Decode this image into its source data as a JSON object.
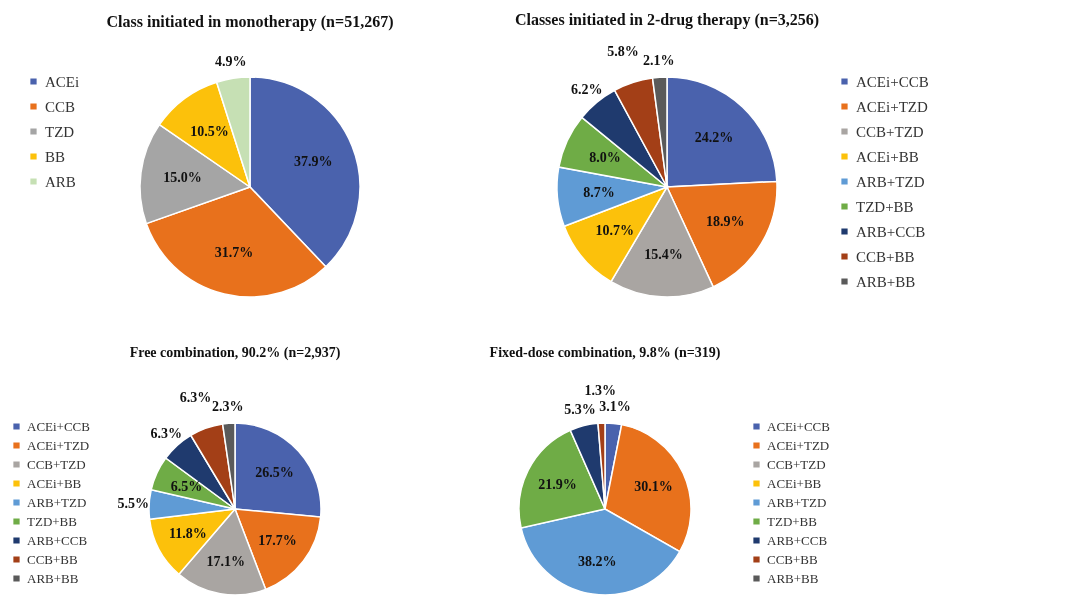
{
  "chart_data": [
    {
      "type": "pie",
      "title": "Class initiated in monotherapy (n=51,267)",
      "legend": "left",
      "categories": [
        "ACEi",
        "CCB",
        "TZD",
        "BB",
        "ARB"
      ],
      "values": [
        37.9,
        31.7,
        15.0,
        10.5,
        4.9
      ],
      "colors": [
        "#4a62ad",
        "#e8711c",
        "#a5a5a5",
        "#fcc10b",
        "#c6e0b4"
      ],
      "value_labels": [
        "37.9%",
        "31.7%",
        "15.0%",
        "10.5%",
        "4.9%"
      ]
    },
    {
      "type": "pie",
      "title": "Classes initiated in 2-drug therapy (n=3,256)",
      "legend": "right",
      "categories": [
        "ACEi+CCB",
        "ACEi+TZD",
        "CCB+TZD",
        "ACEi+BB",
        "ARB+TZD",
        "TZD+BB",
        "ARB+CCB",
        "CCB+BB",
        "ARB+BB"
      ],
      "values": [
        24.2,
        18.9,
        15.4,
        10.7,
        8.7,
        8.0,
        6.2,
        5.8,
        2.1
      ],
      "colors": [
        "#4a62ad",
        "#e8711c",
        "#a9a5a2",
        "#fcc10b",
        "#5f9bd5",
        "#6fac46",
        "#1f3a6e",
        "#a33f17",
        "#5a5a5a"
      ],
      "value_labels": [
        "24.2%",
        "18.9%",
        "15.4%",
        "10.7%",
        "8.7%",
        "8.0%",
        "6.2%",
        "5.8%",
        "2.1%"
      ]
    },
    {
      "type": "pie",
      "title": "Free combination, 90.2% (n=2,937)",
      "legend": "left",
      "categories": [
        "ACEi+CCB",
        "ACEi+TZD",
        "CCB+TZD",
        "ACEi+BB",
        "ARB+TZD",
        "TZD+BB",
        "ARB+CCB",
        "CCB+BB",
        "ARB+BB"
      ],
      "values": [
        26.5,
        17.7,
        17.1,
        11.8,
        5.5,
        6.5,
        6.3,
        6.3,
        2.3
      ],
      "colors": [
        "#4a62ad",
        "#e8711c",
        "#a9a5a2",
        "#fcc10b",
        "#5f9bd5",
        "#6fac46",
        "#1f3a6e",
        "#a33f17",
        "#5a5a5a"
      ],
      "value_labels": [
        "26.5%",
        "17.7%",
        "17.1%",
        "11.8%",
        "5.5%",
        "6.5%",
        "6.3%",
        "6.3%",
        "2.3%"
      ]
    },
    {
      "type": "pie",
      "title": "Fixed-dose combination, 9.8% (n=319)",
      "legend": "right",
      "categories": [
        "ACEi+CCB",
        "ACEi+TZD",
        "CCB+TZD",
        "ACEi+BB",
        "ARB+TZD",
        "TZD+BB",
        "ARB+CCB",
        "CCB+BB",
        "ARB+BB"
      ],
      "values": [
        3.1,
        30.1,
        0,
        0,
        38.2,
        21.9,
        5.3,
        1.3,
        0
      ],
      "colors": [
        "#4a62ad",
        "#e8711c",
        "#a9a5a2",
        "#fcc10b",
        "#5f9bd5",
        "#6fac46",
        "#1f3a6e",
        "#a33f17",
        "#5a5a5a"
      ],
      "value_labels": [
        "3.1%",
        "30.1%",
        null,
        null,
        "38.2%",
        "21.9%",
        "5.3%",
        "1.3%",
        null
      ]
    }
  ]
}
